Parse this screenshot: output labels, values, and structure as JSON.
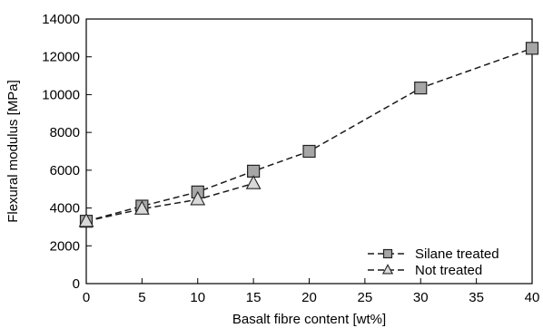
{
  "chart_data": {
    "type": "line",
    "xlabel": "Basalt fibre content [wt%]",
    "ylabel": "Flexural modulus [MPa]",
    "xlim": [
      0,
      40
    ],
    "ylim": [
      0,
      14000
    ],
    "x_ticks": [
      0,
      5,
      10,
      15,
      20,
      25,
      30,
      35,
      40
    ],
    "y_ticks": [
      0,
      2000,
      4000,
      6000,
      8000,
      10000,
      12000,
      14000
    ],
    "grid": false,
    "legend_position": "bottom-right",
    "series": [
      {
        "name": "Silane treated",
        "marker": "square",
        "line_style": "dashed",
        "color": "#1a1a1a",
        "marker_fill": "#a6a6a6",
        "x": [
          0,
          5,
          10,
          15,
          20,
          30,
          40
        ],
        "y": [
          3300,
          4100,
          4850,
          5950,
          7000,
          10350,
          12450
        ]
      },
      {
        "name": "Not treated",
        "marker": "triangle",
        "line_style": "dashed",
        "color": "#1a1a1a",
        "marker_fill": "#d9d9d9",
        "x": [
          0,
          5,
          10,
          15
        ],
        "y": [
          3300,
          3950,
          4450,
          5300
        ]
      }
    ]
  }
}
